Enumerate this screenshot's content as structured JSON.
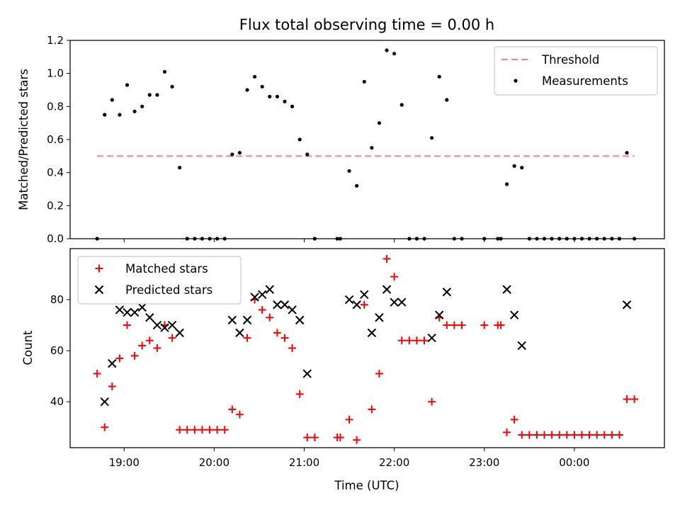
{
  "title": "Flux total observing time = 0.00 h",
  "colors": {
    "threshold": "#ff7f7f",
    "matched": "#ff0000",
    "predicted": "#000000",
    "measurement": "#000000"
  },
  "chart_data": [
    {
      "type": "scatter",
      "ylabel": "Matched/Predicted stars",
      "ylim": [
        0,
        1.2
      ],
      "yticks": [
        "0.0",
        "0.2",
        "0.4",
        "0.6",
        "0.8",
        "1.0",
        "1.2"
      ],
      "legend_position": "top-right",
      "threshold": {
        "name": "Threshold",
        "value": 0.5,
        "x_range": [
          "18:42",
          "00:40"
        ]
      },
      "series": [
        {
          "name": "Measurements",
          "points": [
            [
              "18:42",
              0.0
            ],
            [
              "18:47",
              0.75
            ],
            [
              "18:52",
              0.84
            ],
            [
              "18:57",
              0.75
            ],
            [
              "19:02",
              0.93
            ],
            [
              "19:07",
              0.77
            ],
            [
              "19:12",
              0.8
            ],
            [
              "19:17",
              0.87
            ],
            [
              "19:22",
              0.87
            ],
            [
              "19:27",
              1.01
            ],
            [
              "19:32",
              0.92
            ],
            [
              "19:37",
              0.43
            ],
            [
              "19:42",
              0.0
            ],
            [
              "19:47",
              0.0
            ],
            [
              "19:52",
              0.0
            ],
            [
              "19:57",
              0.0
            ],
            [
              "20:02",
              0.0
            ],
            [
              "20:07",
              0.0
            ],
            [
              "20:12",
              0.51
            ],
            [
              "20:17",
              0.52
            ],
            [
              "20:22",
              0.9
            ],
            [
              "20:27",
              0.98
            ],
            [
              "20:32",
              0.92
            ],
            [
              "20:37",
              0.86
            ],
            [
              "20:42",
              0.86
            ],
            [
              "20:47",
              0.83
            ],
            [
              "20:52",
              0.8
            ],
            [
              "20:57",
              0.6
            ],
            [
              "21:02",
              0.51
            ],
            [
              "21:07",
              0.0
            ],
            [
              "21:22",
              0.0
            ],
            [
              "21:24",
              0.0
            ],
            [
              "21:30",
              0.41
            ],
            [
              "21:35",
              0.32
            ],
            [
              "21:40",
              0.95
            ],
            [
              "21:45",
              0.55
            ],
            [
              "21:50",
              0.7
            ],
            [
              "21:55",
              1.14
            ],
            [
              "22:00",
              1.12
            ],
            [
              "22:05",
              0.81
            ],
            [
              "22:10",
              0.0
            ],
            [
              "22:15",
              0.0
            ],
            [
              "22:20",
              0.0
            ],
            [
              "22:25",
              0.61
            ],
            [
              "22:30",
              0.98
            ],
            [
              "22:35",
              0.84
            ],
            [
              "22:40",
              0.0
            ],
            [
              "22:45",
              0.0
            ],
            [
              "23:00",
              0.0
            ],
            [
              "23:09",
              0.0
            ],
            [
              "23:11",
              0.0
            ],
            [
              "23:15",
              0.33
            ],
            [
              "23:20",
              0.44
            ],
            [
              "23:25",
              0.43
            ],
            [
              "23:30",
              0.0
            ],
            [
              "23:35",
              0.0
            ],
            [
              "23:40",
              0.0
            ],
            [
              "23:45",
              0.0
            ],
            [
              "23:50",
              0.0
            ],
            [
              "23:55",
              0.0
            ],
            [
              "24:00",
              0.0
            ],
            [
              "24:05",
              0.0
            ],
            [
              "24:10",
              0.0
            ],
            [
              "24:15",
              0.0
            ],
            [
              "24:20",
              0.0
            ],
            [
              "24:25",
              0.0
            ],
            [
              "24:30",
              0.0
            ],
            [
              "24:35",
              0.52
            ],
            [
              "24:40",
              0.0
            ]
          ]
        }
      ]
    },
    {
      "type": "scatter",
      "xlabel": "Time (UTC)",
      "ylabel": "Count",
      "ylim": [
        22,
        100
      ],
      "yticks": [
        "40",
        "60",
        "80"
      ],
      "xlim": [
        "18:24",
        "01:00"
      ],
      "xticks": [
        "19:00",
        "20:00",
        "21:00",
        "22:00",
        "23:00",
        "00:00"
      ],
      "legend_position": "top-left",
      "series": [
        {
          "name": "Matched stars",
          "points": [
            [
              "18:42",
              51
            ],
            [
              "18:47",
              30
            ],
            [
              "18:52",
              46
            ],
            [
              "18:57",
              57
            ],
            [
              "19:02",
              70
            ],
            [
              "19:07",
              58
            ],
            [
              "19:12",
              62
            ],
            [
              "19:17",
              64
            ],
            [
              "19:22",
              61
            ],
            [
              "19:27",
              70
            ],
            [
              "19:32",
              65
            ],
            [
              "19:37",
              29
            ],
            [
              "19:42",
              29
            ],
            [
              "19:47",
              29
            ],
            [
              "19:52",
              29
            ],
            [
              "19:57",
              29
            ],
            [
              "20:02",
              29
            ],
            [
              "20:07",
              29
            ],
            [
              "20:12",
              37
            ],
            [
              "20:17",
              35
            ],
            [
              "20:22",
              65
            ],
            [
              "20:27",
              80
            ],
            [
              "20:32",
              76
            ],
            [
              "20:37",
              73
            ],
            [
              "20:42",
              67
            ],
            [
              "20:47",
              65
            ],
            [
              "20:52",
              61
            ],
            [
              "20:57",
              43
            ],
            [
              "21:02",
              26
            ],
            [
              "21:07",
              26
            ],
            [
              "21:22",
              26
            ],
            [
              "21:24",
              26
            ],
            [
              "21:30",
              33
            ],
            [
              "21:35",
              25
            ],
            [
              "21:40",
              78
            ],
            [
              "21:45",
              37
            ],
            [
              "21:50",
              51
            ],
            [
              "21:55",
              96
            ],
            [
              "22:00",
              89
            ],
            [
              "22:05",
              64
            ],
            [
              "22:10",
              64
            ],
            [
              "22:15",
              64
            ],
            [
              "22:20",
              64
            ],
            [
              "22:25",
              40
            ],
            [
              "22:30",
              73
            ],
            [
              "22:35",
              70
            ],
            [
              "22:40",
              70
            ],
            [
              "22:45",
              70
            ],
            [
              "23:00",
              70
            ],
            [
              "23:09",
              70
            ],
            [
              "23:11",
              70
            ],
            [
              "23:15",
              28
            ],
            [
              "23:20",
              33
            ],
            [
              "23:25",
              27
            ],
            [
              "23:30",
              27
            ],
            [
              "23:35",
              27
            ],
            [
              "23:40",
              27
            ],
            [
              "23:45",
              27
            ],
            [
              "23:50",
              27
            ],
            [
              "23:55",
              27
            ],
            [
              "24:00",
              27
            ],
            [
              "24:05",
              27
            ],
            [
              "24:10",
              27
            ],
            [
              "24:15",
              27
            ],
            [
              "24:20",
              27
            ],
            [
              "24:25",
              27
            ],
            [
              "24:30",
              27
            ],
            [
              "24:35",
              41
            ],
            [
              "24:40",
              41
            ]
          ]
        },
        {
          "name": "Predicted stars",
          "points": [
            [
              "18:47",
              40
            ],
            [
              "18:52",
              55
            ],
            [
              "18:57",
              76
            ],
            [
              "19:02",
              75
            ],
            [
              "19:07",
              75
            ],
            [
              "19:12",
              77
            ],
            [
              "19:17",
              73
            ],
            [
              "19:22",
              70
            ],
            [
              "19:27",
              69
            ],
            [
              "19:32",
              70
            ],
            [
              "19:37",
              67
            ],
            [
              "20:12",
              72
            ],
            [
              "20:17",
              67
            ],
            [
              "20:22",
              72
            ],
            [
              "20:27",
              81
            ],
            [
              "20:32",
              82
            ],
            [
              "20:37",
              84
            ],
            [
              "20:42",
              78
            ],
            [
              "20:47",
              78
            ],
            [
              "20:52",
              76
            ],
            [
              "20:57",
              72
            ],
            [
              "21:02",
              51
            ],
            [
              "21:30",
              80
            ],
            [
              "21:35",
              78
            ],
            [
              "21:40",
              82
            ],
            [
              "21:45",
              67
            ],
            [
              "21:50",
              73
            ],
            [
              "21:55",
              84
            ],
            [
              "22:00",
              79
            ],
            [
              "22:05",
              79
            ],
            [
              "22:25",
              65
            ],
            [
              "22:30",
              74
            ],
            [
              "22:35",
              83
            ],
            [
              "23:15",
              84
            ],
            [
              "23:20",
              74
            ],
            [
              "23:25",
              62
            ],
            [
              "24:35",
              78
            ]
          ]
        }
      ]
    }
  ]
}
